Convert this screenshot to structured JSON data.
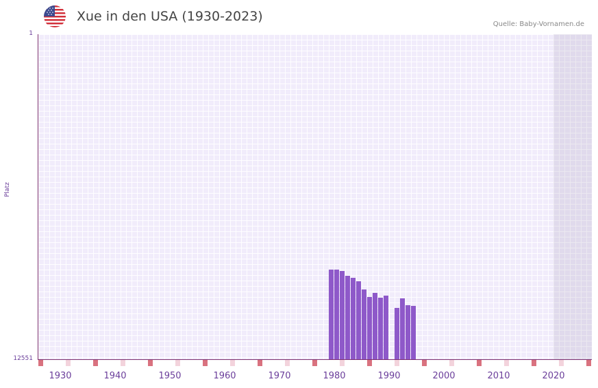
{
  "header": {
    "title": "Xue in den USA (1930-2023)",
    "source": "Quelle: Baby-Vornamen.de",
    "flag_icon": "us-flag-icon"
  },
  "axes": {
    "ylabel": "Platz",
    "ytick_top": "1",
    "ytick_bottom": "12551"
  },
  "colors": {
    "bar": "#8e59c9",
    "plot_bg": "#f1ecfb",
    "axis": "#7b2d6e",
    "tick_label": "#6a3d9a",
    "decade_marker": "#d9727f",
    "minor_marker": "#f3d3dc"
  },
  "chart_data": {
    "type": "bar",
    "title": "Xue in den USA (1930-2023)",
    "xlabel": "",
    "ylabel": "Platz",
    "ylim": [
      12551,
      1
    ],
    "y_inverted": true,
    "x_range": [
      1928,
      2028
    ],
    "grid": true,
    "legend": null,
    "xticks": [
      "1930",
      "1940",
      "1950",
      "1960",
      "1970",
      "1980",
      "1990",
      "2000",
      "2010",
      "2020"
    ],
    "yticks": [
      "1",
      "12551"
    ],
    "categories": [
      "1981",
      "1982",
      "1983",
      "1984",
      "1985",
      "1986",
      "1987",
      "1988",
      "1989",
      "1990",
      "1991",
      "1993",
      "1994",
      "1995",
      "1996"
    ],
    "series": [
      {
        "name": "Xue",
        "values": [
          9090,
          9090,
          9143,
          9328,
          9407,
          9539,
          9856,
          10147,
          9988,
          10173,
          10094,
          10569,
          10199,
          10464,
          10490
        ]
      }
    ],
    "source": "Quelle: Baby-Vornamen.de"
  }
}
